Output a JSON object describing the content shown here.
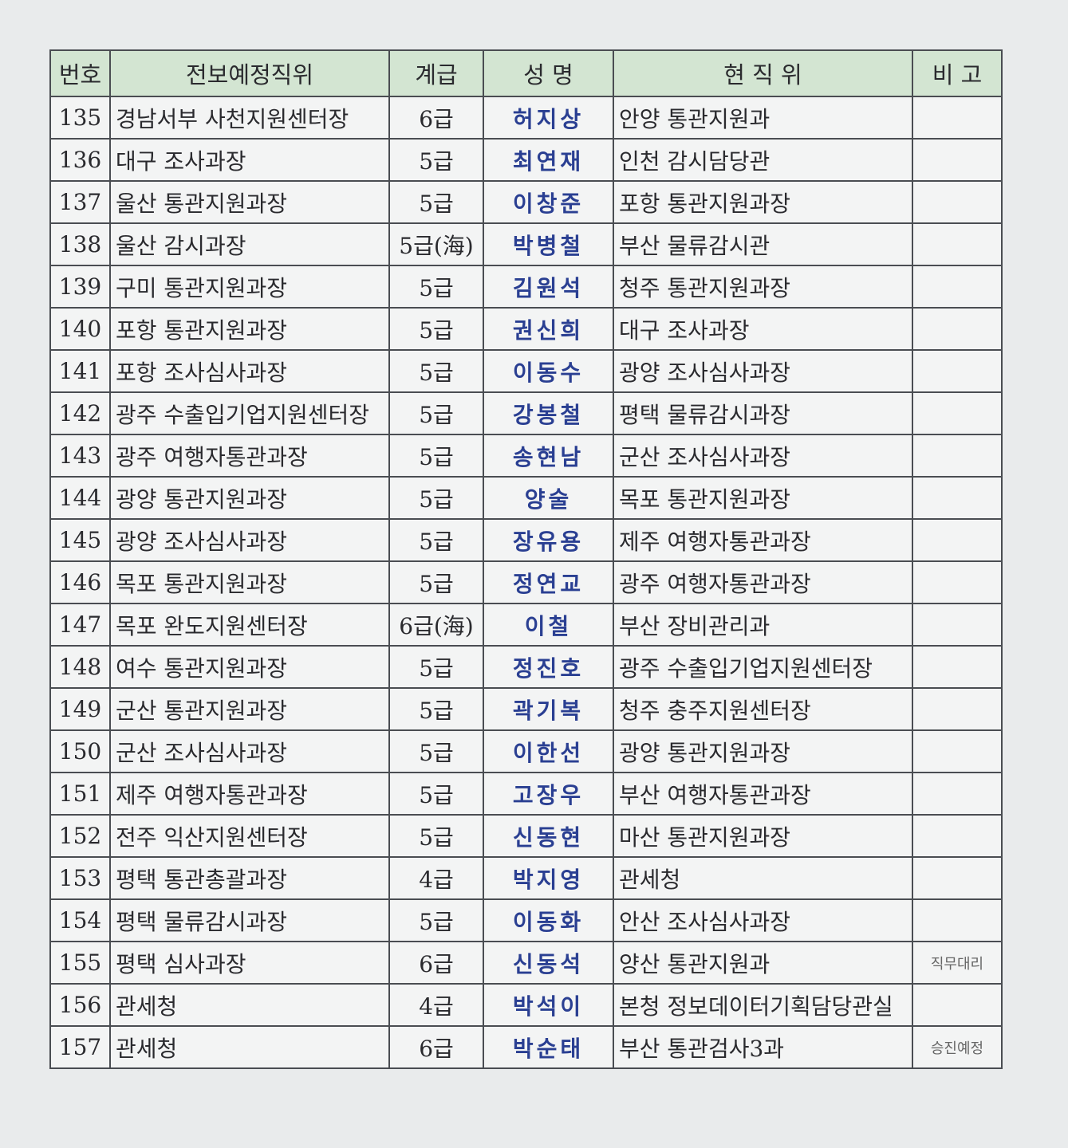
{
  "table": {
    "columns": [
      "번호",
      "전보예정직위",
      "계급",
      "성 명",
      "현 직 위",
      "비 고"
    ],
    "rows": [
      {
        "no": "135",
        "post": "경남서부 사천지원센터장",
        "grade": "6급",
        "name": "허지상",
        "current": "안양 통관지원과"
      },
      {
        "no": "136",
        "post": "대구 조사과장",
        "grade": "5급",
        "name": "최연재",
        "current": "인천 감시담당관"
      },
      {
        "no": "137",
        "post": "울산 통관지원과장",
        "grade": "5급",
        "name": "이창준",
        "current": "포항 통관지원과장"
      },
      {
        "no": "138",
        "post": "울산 감시과장",
        "grade": "5급(海)",
        "name": "박병철",
        "current": "부산 물류감시관"
      },
      {
        "no": "139",
        "post": "구미 통관지원과장",
        "grade": "5급",
        "name": "김원석",
        "current": "청주 통관지원과장"
      },
      {
        "no": "140",
        "post": "포항 통관지원과장",
        "grade": "5급",
        "name": "권신희",
        "current": "대구 조사과장"
      },
      {
        "no": "141",
        "post": "포항 조사심사과장",
        "grade": "5급",
        "name": "이동수",
        "current": "광양 조사심사과장"
      },
      {
        "no": "142",
        "post": "광주 수출입기업지원센터장",
        "grade": "5급",
        "name": "강봉철",
        "current": "평택 물류감시과장"
      },
      {
        "no": "143",
        "post": "광주 여행자통관과장",
        "grade": "5급",
        "name": "송현남",
        "current": "군산 조사심사과장"
      },
      {
        "no": "144",
        "post": "광양 통관지원과장",
        "grade": "5급",
        "name": "양술",
        "current": "목포 통관지원과장"
      },
      {
        "no": "145",
        "post": "광양 조사심사과장",
        "grade": "5급",
        "name": "장유용",
        "current": "제주 여행자통관과장"
      },
      {
        "no": "146",
        "post": "목포 통관지원과장",
        "grade": "5급",
        "name": "정연교",
        "current": "광주 여행자통관과장"
      },
      {
        "no": "147",
        "post": "목포 완도지원센터장",
        "grade": "6급(海)",
        "name": "이철",
        "current": "부산 장비관리과"
      },
      {
        "no": "148",
        "post": "여수 통관지원과장",
        "grade": "5급",
        "name": "정진호",
        "current": "광주 수출입기업지원센터장"
      },
      {
        "no": "149",
        "post": "군산 통관지원과장",
        "grade": "5급",
        "name": "곽기복",
        "current": "청주 충주지원센터장"
      },
      {
        "no": "150",
        "post": "군산 조사심사과장",
        "grade": "5급",
        "name": "이한선",
        "current": "광양 통관지원과장"
      },
      {
        "no": "151",
        "post": "제주 여행자통관과장",
        "grade": "5급",
        "name": "고장우",
        "current": "부산 여행자통관과장"
      },
      {
        "no": "152",
        "post": "전주 익산지원센터장",
        "grade": "5급",
        "name": "신동현",
        "current": "마산 통관지원과장"
      },
      {
        "no": "153",
        "post": "평택 통관총괄과장",
        "grade": "4급",
        "name": "박지영",
        "current": "관세청"
      },
      {
        "no": "154",
        "post": "평택 물류감시과장",
        "grade": "5급",
        "name": "이동화",
        "current": "안산 조사심사과장"
      },
      {
        "no": "155",
        "post": "평택 심사과장",
        "grade": "6급",
        "name": "신동석",
        "current": "양산 통관지원과",
        "note": "직무대리"
      },
      {
        "no": "156",
        "post": "관세청",
        "grade": "4급",
        "name": "박석이",
        "current": "본청 정보데이터기획담당관실"
      },
      {
        "no": "157",
        "post": "관세청",
        "grade": "6급",
        "name": "박순태",
        "current": "부산 통관검사3과",
        "note": "승진예정"
      }
    ]
  }
}
